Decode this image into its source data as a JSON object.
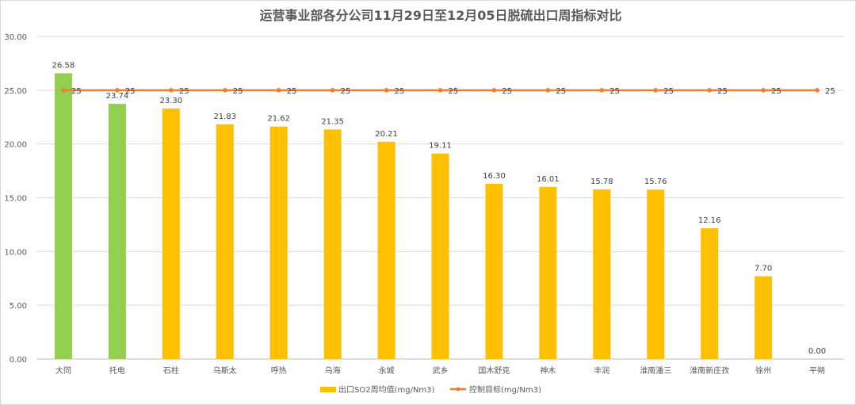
{
  "chart_data": {
    "type": "bar",
    "title": "运营事业部各分公司11月29日至12月05日脱硫出口周指标对比",
    "xlabel": "",
    "ylabel": "",
    "ylim": [
      0,
      30
    ],
    "yticks": [
      "0.00",
      "5.00",
      "10.00",
      "15.00",
      "20.00",
      "25.00",
      "30.00"
    ],
    "grid": true,
    "legend_position": "bottom",
    "categories": [
      "大同",
      "托电",
      "石柱",
      "乌斯太",
      "呼热",
      "乌海",
      "永城",
      "武乡",
      "国木舒克",
      "神木",
      "丰润",
      "淮南潘三",
      "淮南新庄孜",
      "徐州",
      "平朔"
    ],
    "series": [
      {
        "name": "出口SO2周均值(mg/Nm3)",
        "type": "bar",
        "color": "#FFC000",
        "highlight_color": "#92D050",
        "highlight_indices": [
          0,
          1
        ],
        "values": [
          26.58,
          23.74,
          23.3,
          21.83,
          21.62,
          21.35,
          20.21,
          19.11,
          16.3,
          16.01,
          15.78,
          15.76,
          12.16,
          7.7,
          0.0
        ],
        "labels": [
          "26.58",
          "23.74",
          "23.30",
          "21.83",
          "21.62",
          "21.35",
          "20.21",
          "19.11",
          "16.30",
          "16.01",
          "15.78",
          "15.76",
          "12.16",
          "7.70",
          "0.00"
        ]
      },
      {
        "name": "控制目标(mg/Nm3)",
        "type": "line",
        "color": "#ED7D31",
        "values": [
          25,
          25,
          25,
          25,
          25,
          25,
          25,
          25,
          25,
          25,
          25,
          25,
          25,
          25,
          25
        ],
        "labels": [
          "25",
          "25",
          "25",
          "25",
          "25",
          "25",
          "25",
          "25",
          "25",
          "25",
          "25",
          "25",
          "25",
          "25",
          "25"
        ]
      }
    ]
  }
}
